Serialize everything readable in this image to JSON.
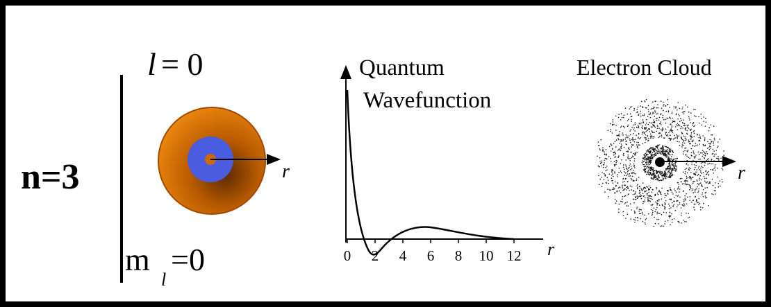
{
  "orbital": {
    "n_label": "n=3",
    "l_symbol": "l",
    "l_value": "= 0",
    "ml_symbol": "m",
    "ml_subscript": "l",
    "ml_value": "=0",
    "r_label": "r"
  },
  "wavefunction": {
    "title_line1": "Quantum",
    "title_line2": "Wavefunction",
    "xticks": [
      0,
      2,
      4,
      6,
      8,
      10,
      12
    ],
    "xlim": [
      0,
      12
    ],
    "x_label": "r"
  },
  "cloud": {
    "title": "Electron Cloud",
    "r_label": "r"
  }
}
